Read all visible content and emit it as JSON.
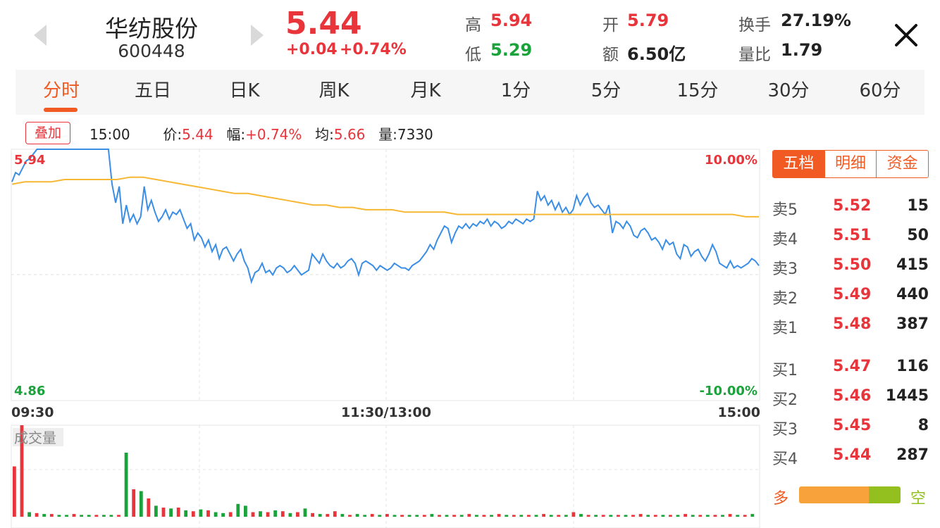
{
  "header": {
    "name": "华纺股份",
    "code": "600448",
    "price": "5.44",
    "change_abs": "+0.04",
    "change_pct": "+0.74%",
    "stats": [
      {
        "label": "高",
        "value": "5.94",
        "color": "#e8343b"
      },
      {
        "label": "开",
        "value": "5.79",
        "color": "#e8343b"
      },
      {
        "label": "换手",
        "value": "27.19%",
        "color": "#222222"
      },
      {
        "label": "低",
        "value": "5.29",
        "color": "#1aa33a"
      },
      {
        "label": "额",
        "value": "6.50亿",
        "color": "#222222"
      },
      {
        "label": "量比",
        "value": "1.79",
        "color": "#222222"
      }
    ]
  },
  "tabs": [
    "分时",
    "五日",
    "日K",
    "周K",
    "月K",
    "1分",
    "5分",
    "15分",
    "30分",
    "60分"
  ],
  "active_tab": 0,
  "info": {
    "overlay_label": "叠加",
    "time": "15:00",
    "price_label": "价:",
    "price_value": "5.44",
    "amp_label": "幅:",
    "amp_value": "+0.74%",
    "avg_label": "均:",
    "avg_value": "5.66",
    "vol_label": "量:",
    "vol_value": "7330"
  },
  "chart": {
    "y_top_label": "5.94",
    "y_bottom_label": "4.86",
    "pct_top_label": "10.00%",
    "pct_bottom_label": "-10.00%",
    "time_start": "09:30",
    "time_mid": "11:30/13:00",
    "time_end": "15:00",
    "volume_label": "成交量"
  },
  "chart_data": {
    "type": "line",
    "ylim": [
      4.86,
      5.94
    ],
    "x_range": [
      "09:30",
      "15:00"
    ],
    "series": [
      {
        "values": [
          5.8,
          5.84,
          5.83,
          5.86,
          5.89,
          5.9,
          5.92,
          5.94,
          5.94,
          5.94,
          5.94,
          5.94,
          5.94,
          5.94,
          5.94,
          5.94,
          5.94,
          5.94,
          5.94,
          5.94,
          5.94,
          5.94,
          5.94,
          5.94,
          5.94,
          5.94,
          5.94,
          5.94,
          5.79,
          5.71,
          5.78,
          5.62,
          5.7,
          5.63,
          5.66,
          5.62,
          5.65,
          5.78,
          5.68,
          5.72,
          5.67,
          5.63,
          5.65,
          5.68,
          5.64,
          5.67,
          5.66,
          5.68,
          5.64,
          5.6,
          5.62,
          5.55,
          5.58,
          5.56,
          5.52,
          5.55,
          5.5,
          5.53,
          5.47,
          5.51,
          5.52,
          5.49,
          5.46,
          5.49,
          5.51,
          5.46,
          5.43,
          5.37,
          5.41,
          5.42,
          5.45,
          5.41,
          5.42,
          5.4,
          5.43,
          5.44,
          5.43,
          5.41,
          5.42,
          5.44,
          5.42,
          5.4,
          5.41,
          5.42,
          5.49,
          5.47,
          5.45,
          5.49,
          5.46,
          5.44,
          5.43,
          5.45,
          5.43,
          5.44,
          5.46,
          5.47,
          5.45,
          5.4,
          5.45,
          5.46,
          5.45,
          5.44,
          5.42,
          5.44,
          5.43,
          5.42,
          5.43,
          5.45,
          5.44,
          5.43,
          5.43,
          5.42,
          5.44,
          5.45,
          5.46,
          5.48,
          5.5,
          5.53,
          5.51,
          5.55,
          5.58,
          5.61,
          5.6,
          5.54,
          5.58,
          5.61,
          5.6,
          5.62,
          5.6,
          5.62,
          5.61,
          5.63,
          5.62,
          5.64,
          5.61,
          5.63,
          5.62,
          5.6,
          5.61,
          5.63,
          5.62,
          5.64,
          5.63,
          5.62,
          5.64,
          5.63,
          5.64,
          5.76,
          5.72,
          5.74,
          5.7,
          5.72,
          5.68,
          5.71,
          5.67,
          5.69,
          5.66,
          5.68,
          5.74,
          5.7,
          5.73,
          5.75,
          5.71,
          5.69,
          5.7,
          5.68,
          5.66,
          5.7,
          5.58,
          5.63,
          5.62,
          5.6,
          5.63,
          5.61,
          5.57,
          5.56,
          5.59,
          5.6,
          5.58,
          5.55,
          5.56,
          5.54,
          5.51,
          5.55,
          5.53,
          5.54,
          5.49,
          5.47,
          5.53,
          5.52,
          5.48,
          5.5,
          5.51,
          5.48,
          5.46,
          5.49,
          5.53,
          5.5,
          5.45,
          5.44,
          5.43,
          5.46,
          5.43,
          5.44,
          5.43,
          5.44,
          5.45,
          5.47,
          5.46,
          5.44
        ]
      },
      {
        "values": [
          5.79,
          5.8,
          5.8,
          5.8,
          5.81,
          5.81,
          5.81,
          5.81,
          5.81,
          5.82,
          5.82,
          5.81,
          5.8,
          5.79,
          5.78,
          5.77,
          5.76,
          5.75,
          5.75,
          5.74,
          5.73,
          5.72,
          5.71,
          5.7,
          5.7,
          5.69,
          5.69,
          5.68,
          5.68,
          5.68,
          5.67,
          5.67,
          5.67,
          5.67,
          5.66,
          5.66,
          5.66,
          5.66,
          5.66,
          5.66,
          5.66,
          5.66,
          5.66,
          5.66,
          5.66,
          5.66,
          5.66,
          5.66,
          5.66,
          5.66,
          5.66,
          5.66,
          5.66,
          5.66,
          5.66,
          5.66,
          5.65,
          5.65
        ]
      }
    ]
  },
  "volume": [
    {
      "v": 0.55,
      "c": "#e8343b"
    },
    {
      "v": 1.0,
      "c": "#e8343b"
    },
    {
      "v": 0.05,
      "c": "#1aa33a"
    },
    {
      "v": 0.04,
      "c": "#e8343b"
    },
    {
      "v": 0.03,
      "c": "#1aa33a"
    },
    {
      "v": 0.03,
      "c": "#e8343b"
    },
    {
      "v": 0.02,
      "c": "#1aa33a"
    },
    {
      "v": 0.02,
      "c": "#1aa33a"
    },
    {
      "v": 0.03,
      "c": "#e8343b"
    },
    {
      "v": 0.02,
      "c": "#1aa33a"
    },
    {
      "v": 0.02,
      "c": "#1aa33a"
    },
    {
      "v": 0.02,
      "c": "#e8343b"
    },
    {
      "v": 0.02,
      "c": "#1aa33a"
    },
    {
      "v": 0.02,
      "c": "#1aa33a"
    },
    {
      "v": 0.02,
      "c": "#e8343b"
    },
    {
      "v": 0.7,
      "c": "#1aa33a"
    },
    {
      "v": 0.3,
      "c": "#e8343b"
    },
    {
      "v": 0.28,
      "c": "#1aa33a"
    },
    {
      "v": 0.2,
      "c": "#e8343b"
    },
    {
      "v": 0.12,
      "c": "#1aa33a"
    },
    {
      "v": 0.1,
      "c": "#e8343b"
    },
    {
      "v": 0.09,
      "c": "#1aa33a"
    },
    {
      "v": 0.1,
      "c": "#e8343b"
    },
    {
      "v": 0.07,
      "c": "#1aa33a"
    },
    {
      "v": 0.06,
      "c": "#e8343b"
    },
    {
      "v": 0.08,
      "c": "#1aa33a"
    },
    {
      "v": 0.07,
      "c": "#e8343b"
    },
    {
      "v": 0.05,
      "c": "#1aa33a"
    },
    {
      "v": 0.04,
      "c": "#1aa33a"
    },
    {
      "v": 0.05,
      "c": "#e8343b"
    },
    {
      "v": 0.14,
      "c": "#1aa33a"
    },
    {
      "v": 0.12,
      "c": "#1aa33a"
    },
    {
      "v": 0.05,
      "c": "#e8343b"
    },
    {
      "v": 0.06,
      "c": "#1aa33a"
    },
    {
      "v": 0.05,
      "c": "#e8343b"
    },
    {
      "v": 0.07,
      "c": "#1aa33a"
    },
    {
      "v": 0.06,
      "c": "#e8343b"
    },
    {
      "v": 0.04,
      "c": "#1aa33a"
    },
    {
      "v": 0.05,
      "c": "#e8343b"
    },
    {
      "v": 0.09,
      "c": "#1aa33a"
    },
    {
      "v": 0.04,
      "c": "#e8343b"
    },
    {
      "v": 0.03,
      "c": "#1aa33a"
    },
    {
      "v": 0.03,
      "c": "#e8343b"
    },
    {
      "v": 0.06,
      "c": "#e8343b"
    },
    {
      "v": 0.03,
      "c": "#1aa33a"
    },
    {
      "v": 0.02,
      "c": "#e8343b"
    },
    {
      "v": 0.03,
      "c": "#1aa33a"
    },
    {
      "v": 0.02,
      "c": "#1aa33a"
    },
    {
      "v": 0.03,
      "c": "#e8343b"
    },
    {
      "v": 0.02,
      "c": "#1aa33a"
    },
    {
      "v": 0.03,
      "c": "#e8343b"
    },
    {
      "v": 0.02,
      "c": "#1aa33a"
    },
    {
      "v": 0.02,
      "c": "#e8343b"
    },
    {
      "v": 0.02,
      "c": "#1aa33a"
    },
    {
      "v": 0.02,
      "c": "#1aa33a"
    },
    {
      "v": 0.02,
      "c": "#e8343b"
    },
    {
      "v": 0.03,
      "c": "#1aa33a"
    },
    {
      "v": 0.02,
      "c": "#e8343b"
    },
    {
      "v": 0.02,
      "c": "#1aa33a"
    },
    {
      "v": 0.02,
      "c": "#e8343b"
    },
    {
      "v": 0.02,
      "c": "#1aa33a"
    },
    {
      "v": 0.03,
      "c": "#e8343b"
    },
    {
      "v": 0.02,
      "c": "#1aa33a"
    },
    {
      "v": 0.02,
      "c": "#e8343b"
    },
    {
      "v": 0.02,
      "c": "#1aa33a"
    },
    {
      "v": 0.03,
      "c": "#e8343b"
    },
    {
      "v": 0.02,
      "c": "#1aa33a"
    },
    {
      "v": 0.02,
      "c": "#e8343b"
    },
    {
      "v": 0.02,
      "c": "#1aa33a"
    },
    {
      "v": 0.02,
      "c": "#e8343b"
    },
    {
      "v": 0.02,
      "c": "#1aa33a"
    },
    {
      "v": 0.03,
      "c": "#e8343b"
    },
    {
      "v": 0.02,
      "c": "#1aa33a"
    },
    {
      "v": 0.02,
      "c": "#e8343b"
    },
    {
      "v": 0.02,
      "c": "#1aa33a"
    },
    {
      "v": 0.05,
      "c": "#e8343b"
    },
    {
      "v": 0.03,
      "c": "#1aa33a"
    },
    {
      "v": 0.02,
      "c": "#e8343b"
    },
    {
      "v": 0.02,
      "c": "#1aa33a"
    },
    {
      "v": 0.02,
      "c": "#e8343b"
    },
    {
      "v": 0.02,
      "c": "#1aa33a"
    },
    {
      "v": 0.02,
      "c": "#e8343b"
    },
    {
      "v": 0.02,
      "c": "#1aa33a"
    },
    {
      "v": 0.02,
      "c": "#e8343b"
    },
    {
      "v": 0.03,
      "c": "#e8343b"
    },
    {
      "v": 0.02,
      "c": "#1aa33a"
    },
    {
      "v": 0.02,
      "c": "#e8343b"
    },
    {
      "v": 0.02,
      "c": "#1aa33a"
    },
    {
      "v": 0.02,
      "c": "#e8343b"
    },
    {
      "v": 0.02,
      "c": "#1aa33a"
    },
    {
      "v": 0.03,
      "c": "#e8343b"
    },
    {
      "v": 0.02,
      "c": "#1aa33a"
    },
    {
      "v": 0.02,
      "c": "#e8343b"
    },
    {
      "v": 0.02,
      "c": "#1aa33a"
    },
    {
      "v": 0.02,
      "c": "#e8343b"
    },
    {
      "v": 0.02,
      "c": "#1aa33a"
    },
    {
      "v": 0.03,
      "c": "#e8343b"
    },
    {
      "v": 0.02,
      "c": "#1aa33a"
    },
    {
      "v": 0.02,
      "c": "#e8343b"
    },
    {
      "v": 0.03,
      "c": "#1aa33a"
    }
  ],
  "panel": {
    "tabs": [
      "五档",
      "明细",
      "资金"
    ],
    "active_tab": 0,
    "asks": [
      {
        "label": "卖5",
        "price": "5.52",
        "vol": "15"
      },
      {
        "label": "卖4",
        "price": "5.51",
        "vol": "50"
      },
      {
        "label": "卖3",
        "price": "5.50",
        "vol": "415"
      },
      {
        "label": "卖2",
        "price": "5.49",
        "vol": "440"
      },
      {
        "label": "卖1",
        "price": "5.48",
        "vol": "387"
      }
    ],
    "bids": [
      {
        "label": "买1",
        "price": "5.47",
        "vol": "116"
      },
      {
        "label": "买2",
        "price": "5.46",
        "vol": "1445"
      },
      {
        "label": "买3",
        "price": "5.45",
        "vol": "8"
      },
      {
        "label": "买4",
        "price": "5.44",
        "vol": "287"
      }
    ],
    "long_label": "多",
    "short_label": "空",
    "long_fraction": 0.69
  },
  "colors": {
    "up": "#e8343b",
    "down": "#1aa33a",
    "accent": "#f15a22",
    "price_line": "#3a8ee6",
    "avg_line": "#f7b733"
  }
}
